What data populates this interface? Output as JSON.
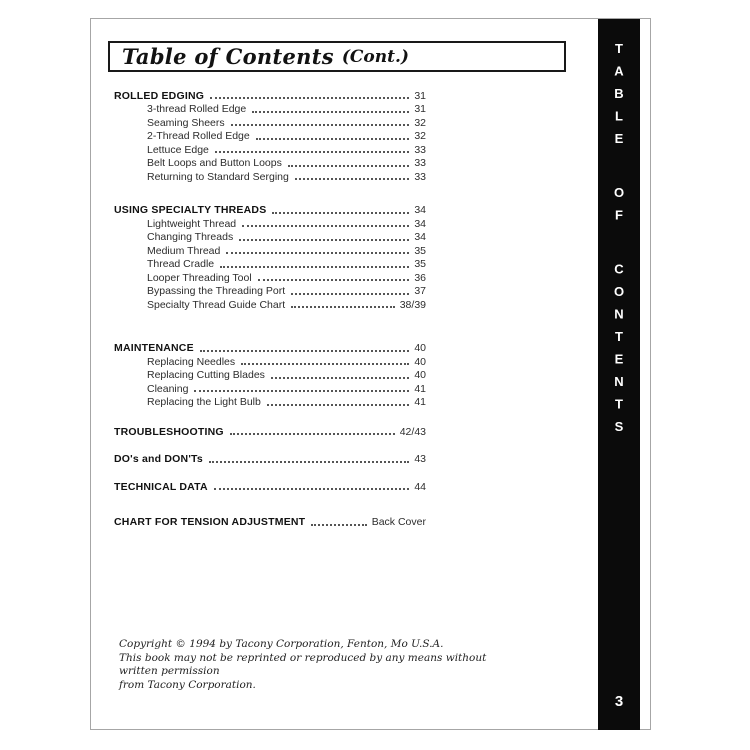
{
  "page": {
    "title_main": "Table of Contents",
    "title_suffix": "(Cont.)",
    "sidebar_vertical_text": "TABLE OF CONTENTS",
    "page_number": "3"
  },
  "colors": {
    "sidebar_bg": "#0b0b0b",
    "page_border": "#a6a6a6",
    "text": "#2d2d2d"
  },
  "toc": {
    "sections": [
      {
        "label": "ROLLED EDGING",
        "page": "31",
        "items": [
          {
            "label": "3-thread Rolled Edge",
            "page": "31"
          },
          {
            "label": "Seaming Sheers",
            "page": "32"
          },
          {
            "label": "2-Thread Rolled Edge",
            "page": "32"
          },
          {
            "label": "Lettuce Edge",
            "page": "33"
          },
          {
            "label": "Belt Loops and Button Loops",
            "page": "33"
          },
          {
            "label": "Returning to Standard Serging",
            "page": "33"
          }
        ]
      },
      {
        "label": "USING SPECIALTY THREADS",
        "page": "34",
        "items": [
          {
            "label": "Lightweight Thread",
            "page": "34"
          },
          {
            "label": "Changing Threads",
            "page": "34"
          },
          {
            "label": "Medium Thread",
            "page": "35"
          },
          {
            "label": "Thread Cradle",
            "page": "35"
          },
          {
            "label": "Looper Threading Tool",
            "page": "36"
          },
          {
            "label": "Bypassing the Threading Port",
            "page": "37"
          },
          {
            "label": "Specialty Thread Guide Chart",
            "page": "38/39"
          }
        ]
      },
      {
        "label": "MAINTENANCE",
        "page": "40",
        "items": [
          {
            "label": "Replacing Needles",
            "page": "40"
          },
          {
            "label": "Replacing Cutting Blades",
            "page": "40"
          },
          {
            "label": "Cleaning",
            "page": "41"
          },
          {
            "label": "Replacing the Light Bulb",
            "page": "41"
          }
        ]
      },
      {
        "label": "TROUBLESHOOTING",
        "page": "42/43",
        "items": []
      },
      {
        "label": "DO's and DON'Ts",
        "page": "43",
        "items": []
      },
      {
        "label": "TECHNICAL DATA",
        "page": "44",
        "items": []
      },
      {
        "label": "CHART FOR TENSION ADJUSTMENT",
        "page": "Back Cover",
        "items": []
      }
    ]
  },
  "footer": {
    "line1": "Copyright © 1994 by Tacony Corporation, Fenton, Mo U.S.A.",
    "line2": "This book may not be reprinted or reproduced by any means without written permission",
    "line3": "from Tacony Corporation."
  }
}
